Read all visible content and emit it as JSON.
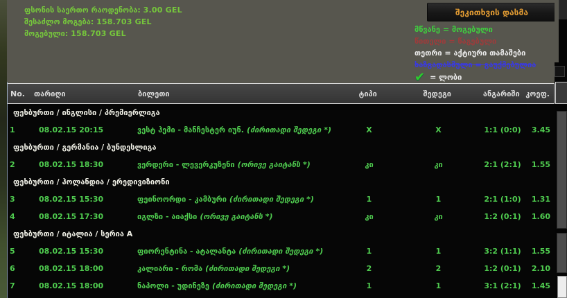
{
  "summary": {
    "lines": [
      {
        "label": "ფსონის საერთო რაოდენობა:",
        "value": "3.00 GEL"
      },
      {
        "label": "შესაძლო მოგება:",
        "value": "158.703 GEL"
      },
      {
        "label": "მოგებული:",
        "value": "158.703 GEL"
      }
    ]
  },
  "actions": {
    "ask_question": "შეკითხვის დასმა"
  },
  "legend": {
    "won": {
      "term": "მწვანე",
      "desc": "= მოგებული"
    },
    "lost": {
      "term": "წითელი",
      "desc": "= წაგებული"
    },
    "active": {
      "term": "თეთრი",
      "desc": "= აქტიური თამაშები"
    },
    "cancelled": {
      "term": "ხაზგადასმული",
      "desc": "= გაუქმებულია"
    },
    "void": {
      "icon": "check-icon",
      "glyph": "✔",
      "desc": "= ლობი"
    }
  },
  "colors": {
    "won_green": "#3ed13e",
    "summary_green": "#76c73c",
    "lost_red": "#9e3b3b",
    "active_white": "#e9e9e9",
    "cancelled_blue": "#3a3ae0",
    "button_orange": "#e09a32",
    "panel_gray": "#57564e"
  },
  "table": {
    "columns": {
      "no": "No.",
      "date": "თარიღი",
      "ticket": "ბილეთი",
      "tip": "ტიპი",
      "result": "შედეგი",
      "score": "ანგარიში",
      "coef": "კოეფ."
    },
    "groups": [
      {
        "league": "ფეხბურთი / ინგლისი / პრემიერლიგა",
        "rows": [
          {
            "no": "1",
            "date": "08.02.15 20:15",
            "match": "ვესტ ჰემი - მანჩესტერ იუნ.",
            "market": "(ძირითადი შედეგი *)",
            "tip": "X",
            "result": "X",
            "score": "1:1 (0:0)",
            "coef": "3.45"
          }
        ]
      },
      {
        "league": "ფეხბურთი / გერმანია / ბუნდესლიგა",
        "rows": [
          {
            "no": "2",
            "date": "08.02.15 18:30",
            "match": "ვერდერი - ლევერკუზენი",
            "market": "(ორივე გაიტანს *)",
            "tip": "კი",
            "result": "კი",
            "score": "2:1 (2:1)",
            "coef": "1.55"
          }
        ]
      },
      {
        "league": "ფეხბურთი / ჰოლანდია / ერედივიზიონი",
        "rows": [
          {
            "no": "3",
            "date": "08.02.15 15:30",
            "match": "ფეინოორდი - კამბური",
            "market": "(ძირითადი შედეგი *)",
            "tip": "1",
            "result": "1",
            "score": "2:1 (1:0)",
            "coef": "1.31"
          },
          {
            "no": "4",
            "date": "08.02.15 17:30",
            "match": "იგლზი - აიაქსი",
            "market": "(ორივე გაიტანს *)",
            "tip": "კი",
            "result": "კი",
            "score": "1:2 (0:1)",
            "coef": "1.60"
          }
        ]
      },
      {
        "league": "ფეხბურთი / იტალია / სერია A",
        "rows": [
          {
            "no": "5",
            "date": "08.02.15 15:30",
            "match": "ფიორენტინა - ატალანტა",
            "market": "(ძირითადი შედეგი *)",
            "tip": "1",
            "result": "1",
            "score": "3:2 (1:1)",
            "coef": "1.55"
          },
          {
            "no": "6",
            "date": "08.02.15 18:00",
            "match": "კალიარი - რომა",
            "market": "(ძირითადი შედეგი *)",
            "tip": "2",
            "result": "2",
            "score": "1:2 (0:1)",
            "coef": "2.10"
          },
          {
            "no": "7",
            "date": "08.02.15 18:00",
            "match": "ნაპოლი - უდინეზე",
            "market": "(ძირითადი შედეგი *)",
            "tip": "1",
            "result": "1",
            "score": "3:1 (2:1)",
            "coef": "1.45"
          }
        ]
      }
    ]
  }
}
